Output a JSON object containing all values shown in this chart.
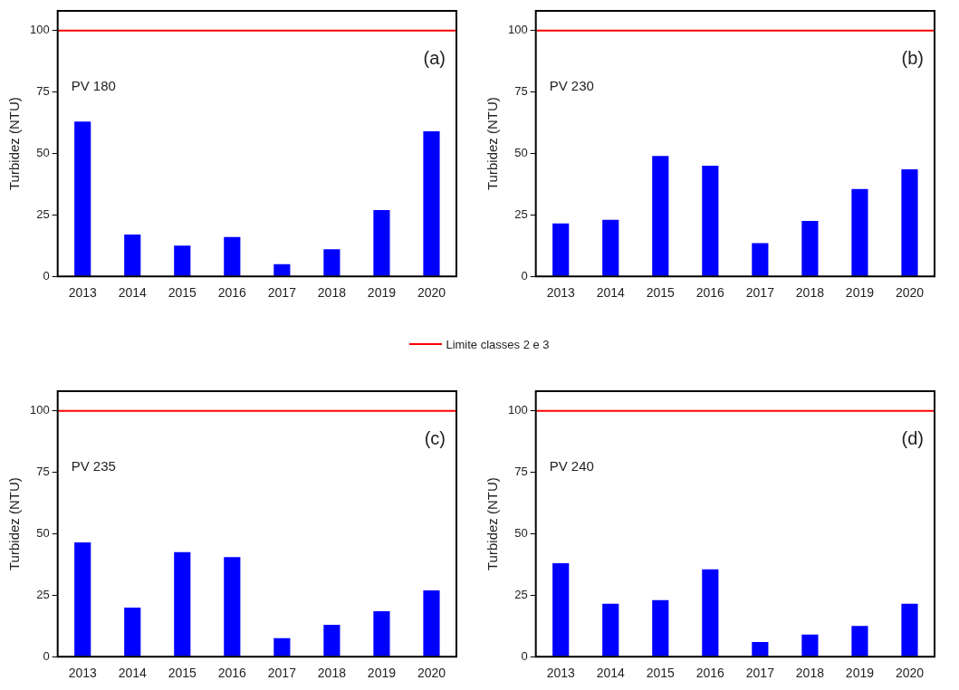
{
  "chart_data": [
    {
      "type": "bar",
      "ylabel": "Turbidez (NTU)",
      "categories": [
        "2013",
        "2014",
        "2015",
        "2016",
        "2017",
        "2018",
        "2019",
        "2020"
      ],
      "values": [
        63,
        17,
        12.5,
        16,
        5,
        11,
        27,
        59
      ],
      "color": "#0000ff",
      "ylim": [
        0,
        108
      ],
      "yticks": [
        0,
        25,
        50,
        75,
        100
      ],
      "annotations": [
        "PV 180",
        "(a)"
      ],
      "ref_lines": [
        {
          "axis": "y",
          "value": 100,
          "label": "Limite classes 2 e 3",
          "color": "#ff0000"
        }
      ],
      "legend": "bottom"
    },
    {
      "type": "bar",
      "ylabel": "Turbidez (NTU)",
      "categories": [
        "2013",
        "2014",
        "2015",
        "2016",
        "2017",
        "2018",
        "2019",
        "2020"
      ],
      "values": [
        21.5,
        23,
        49,
        45,
        13.5,
        22.5,
        35.5,
        43.5
      ],
      "color": "#0000ff",
      "ylim": [
        0,
        108
      ],
      "yticks": [
        0,
        25,
        50,
        75,
        100
      ],
      "annotations": [
        "PV 230",
        "(b)"
      ],
      "ref_lines": [
        {
          "axis": "y",
          "value": 100,
          "color": "#ff0000"
        }
      ]
    },
    {
      "type": "bar",
      "ylabel": "Turbidez (NTU)",
      "categories": [
        "2013",
        "2014",
        "2015",
        "2016",
        "2017",
        "2018",
        "2019",
        "2020"
      ],
      "values": [
        46.5,
        20,
        42.5,
        40.5,
        7.5,
        13,
        18.5,
        27
      ],
      "color": "#0000ff",
      "ylim": [
        0,
        108
      ],
      "yticks": [
        0,
        25,
        50,
        75,
        100
      ],
      "annotations": [
        "PV 235",
        "(c)"
      ],
      "ref_lines": [
        {
          "axis": "y",
          "value": 100,
          "color": "#ff0000"
        }
      ]
    },
    {
      "type": "bar",
      "ylabel": "Turbidez (NTU)",
      "categories": [
        "2013",
        "2014",
        "2015",
        "2016",
        "2017",
        "2018",
        "2019",
        "2020"
      ],
      "values": [
        38,
        21.5,
        23,
        35.5,
        6,
        9,
        12.5,
        21.5
      ],
      "color": "#0000ff",
      "ylim": [
        0,
        108
      ],
      "yticks": [
        0,
        25,
        50,
        75,
        100
      ],
      "annotations": [
        "PV 240",
        "(d)"
      ],
      "ref_lines": [
        {
          "axis": "y",
          "value": 100,
          "color": "#ff0000"
        }
      ]
    }
  ]
}
